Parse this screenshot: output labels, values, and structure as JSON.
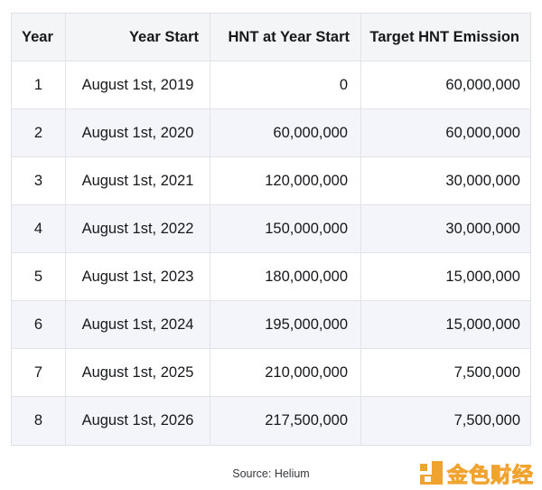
{
  "chart_data": {
    "type": "table",
    "columns": [
      "Year",
      "Year Start",
      "HNT at Year Start",
      "Target HNT Emission"
    ],
    "rows": [
      [
        "1",
        "August 1st, 2019",
        "0",
        "60,000,000"
      ],
      [
        "2",
        "August 1st, 2020",
        "60,000,000",
        "60,000,000"
      ],
      [
        "3",
        "August 1st, 2021",
        "120,000,000",
        "30,000,000"
      ],
      [
        "4",
        "August 1st, 2022",
        "150,000,000",
        "30,000,000"
      ],
      [
        "5",
        "August 1st, 2023",
        "180,000,000",
        "15,000,000"
      ],
      [
        "6",
        "August 1st, 2024",
        "195,000,000",
        "15,000,000"
      ],
      [
        "7",
        "August 1st, 2025",
        "210,000,000",
        "7,500,000"
      ],
      [
        "8",
        "August 1st, 2026",
        "217,500,000",
        "7,500,000"
      ]
    ],
    "source_note": "Source: Helium",
    "layout": {
      "striped_rows": "even",
      "numeric_columns_right_aligned": true
    }
  },
  "watermark": {
    "brand_text": "金色财经"
  },
  "colors": {
    "header_bg": "#f4f5f7",
    "stripe_bg": "#f4f5fa",
    "border": "#e2e3e7",
    "text": "#17181c",
    "source_text": "#37393d",
    "brand_orange": "#f0a32f"
  }
}
